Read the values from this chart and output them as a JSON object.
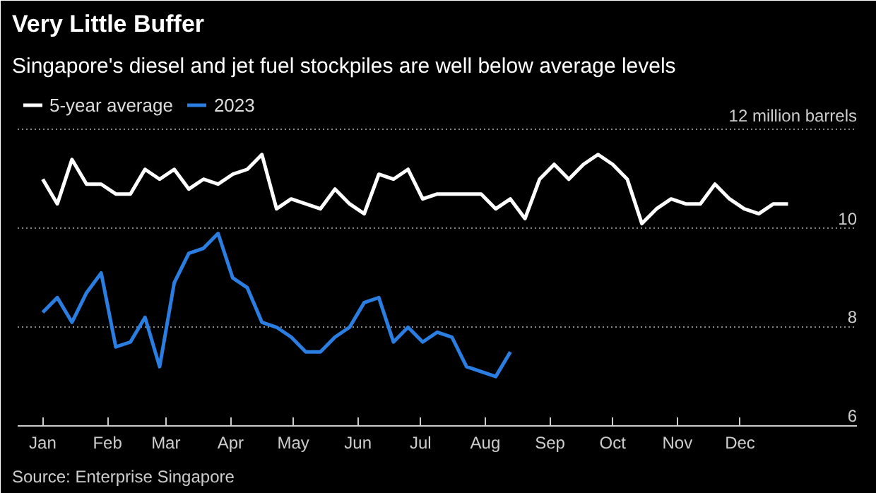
{
  "chart_data": {
    "type": "line",
    "title": "Very Little Buffer",
    "subtitle": "Singapore's diesel and jet fuel stockpiles are well below average levels",
    "annotations": [
      "Source: Enterprise Singapore"
    ],
    "x": [
      "2023-01-01",
      "2023-01-08",
      "2023-01-15",
      "2023-01-22",
      "2023-01-29",
      "2023-02-05",
      "2023-02-12",
      "2023-02-19",
      "2023-02-26",
      "2023-03-05",
      "2023-03-12",
      "2023-03-19",
      "2023-03-26",
      "2023-04-02",
      "2023-04-09",
      "2023-04-16",
      "2023-04-23",
      "2023-04-30",
      "2023-05-07",
      "2023-05-14",
      "2023-05-21",
      "2023-05-28",
      "2023-06-04",
      "2023-06-11",
      "2023-06-18",
      "2023-06-25",
      "2023-07-02",
      "2023-07-09",
      "2023-07-16",
      "2023-07-23",
      "2023-07-30",
      "2023-08-06",
      "2023-08-13",
      "2023-08-20",
      "2023-08-27",
      "2023-09-03",
      "2023-09-10",
      "2023-09-17",
      "2023-09-24",
      "2023-10-01",
      "2023-10-08",
      "2023-10-15",
      "2023-10-22",
      "2023-10-29",
      "2023-11-05",
      "2023-11-12",
      "2023-11-19",
      "2023-11-26",
      "2023-12-03",
      "2023-12-10",
      "2023-12-17",
      "2023-12-24"
    ],
    "series": [
      {
        "name": "5-year average",
        "color": "#ffffff",
        "values": [
          11.0,
          10.5,
          11.4,
          10.9,
          10.9,
          10.7,
          10.7,
          11.2,
          11.0,
          11.2,
          10.8,
          11.0,
          10.9,
          11.1,
          11.2,
          11.5,
          10.4,
          10.6,
          10.5,
          10.4,
          10.8,
          10.5,
          10.3,
          11.1,
          11.0,
          11.2,
          10.6,
          10.7,
          10.7,
          10.7,
          10.7,
          10.4,
          10.6,
          10.2,
          11.0,
          11.3,
          11.0,
          11.3,
          11.5,
          11.3,
          11.0,
          10.1,
          10.4,
          10.6,
          10.5,
          10.5,
          10.9,
          10.6,
          10.4,
          10.3,
          10.5,
          10.5
        ]
      },
      {
        "name": "2023",
        "color": "#2a7de1",
        "values": [
          8.3,
          8.6,
          8.1,
          8.7,
          9.1,
          7.6,
          7.7,
          8.2,
          7.2,
          8.9,
          9.5,
          9.6,
          9.9,
          9.0,
          8.8,
          8.1,
          8.0,
          7.8,
          7.5,
          7.5,
          7.8,
          8.0,
          8.5,
          8.6,
          7.7,
          8.0,
          7.7,
          7.9,
          7.8,
          7.2,
          7.1,
          7.0,
          7.5,
          null,
          null,
          null,
          null,
          null,
          null,
          null,
          null,
          null,
          null,
          null,
          null,
          null,
          null,
          null,
          null,
          null,
          null,
          null
        ]
      }
    ],
    "xlim": [
      "2022-12-20",
      "2024-01-26"
    ],
    "xticks": [
      {
        "value": "2023-01-01",
        "label": "Jan"
      },
      {
        "value": "2023-02-01",
        "label": "Feb"
      },
      {
        "value": "2023-03-01",
        "label": "Mar"
      },
      {
        "value": "2023-04-01",
        "label": "Apr"
      },
      {
        "value": "2023-05-01",
        "label": "May"
      },
      {
        "value": "2023-06-01",
        "label": "Jun"
      },
      {
        "value": "2023-07-01",
        "label": "Jul"
      },
      {
        "value": "2023-08-01",
        "label": "Aug"
      },
      {
        "value": "2023-09-01",
        "label": "Sep"
      },
      {
        "value": "2023-10-01",
        "label": "Oct"
      },
      {
        "value": "2023-11-01",
        "label": "Nov"
      },
      {
        "value": "2023-12-01",
        "label": "Dec"
      }
    ],
    "ylim": [
      6,
      12.9
    ],
    "yticks": [
      6,
      8,
      10,
      {
        "value": 12,
        "label": "12 million barrels"
      }
    ],
    "grid": "y",
    "legend": "top left",
    "line_style": "solid",
    "marker": "none"
  }
}
